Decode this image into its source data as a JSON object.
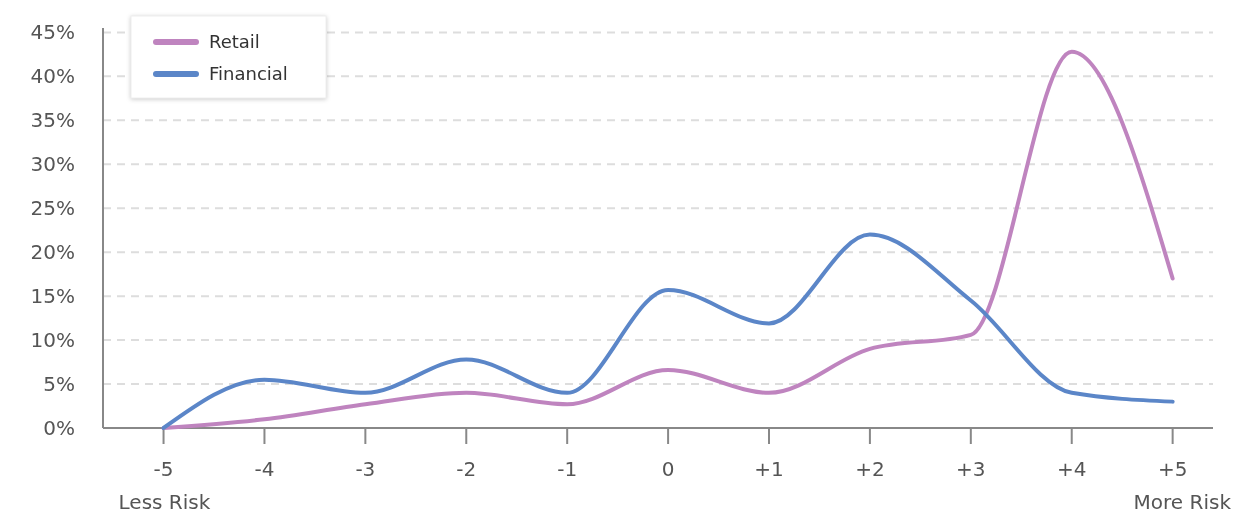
{
  "chart_data": {
    "type": "line",
    "categories": [
      "-5",
      "-4",
      "-3",
      "-2",
      "-1",
      "0",
      "+1",
      "+2",
      "+3",
      "+4",
      "+5"
    ],
    "series": [
      {
        "name": "Retail",
        "color": "#bf84bf",
        "values": [
          0,
          1,
          2.7,
          4,
          2.7,
          6.6,
          4,
          9,
          10.6,
          42.8,
          17
        ]
      },
      {
        "name": "Financial",
        "color": "#5b86c8",
        "values": [
          0,
          5.5,
          4,
          7.8,
          4,
          15.7,
          11.9,
          22,
          14.5,
          4,
          3
        ]
      }
    ],
    "ylim": [
      0,
      45.5
    ],
    "yticks": [
      {
        "value": 0,
        "label": "0%"
      },
      {
        "value": 5,
        "label": "5%"
      },
      {
        "value": 10,
        "label": "10%"
      },
      {
        "value": 15,
        "label": "15%"
      },
      {
        "value": 20,
        "label": "20%"
      },
      {
        "value": 25,
        "label": "25%"
      },
      {
        "value": 30,
        "label": "30%"
      },
      {
        "value": 35,
        "label": "35%"
      },
      {
        "value": 40,
        "label": "40%"
      },
      {
        "value": 45,
        "label": "45%"
      }
    ],
    "grid": "y",
    "legend": "top left",
    "marker": "none",
    "line_style": "solid",
    "annotations": [
      "Less Risk",
      "More Risk"
    ]
  }
}
